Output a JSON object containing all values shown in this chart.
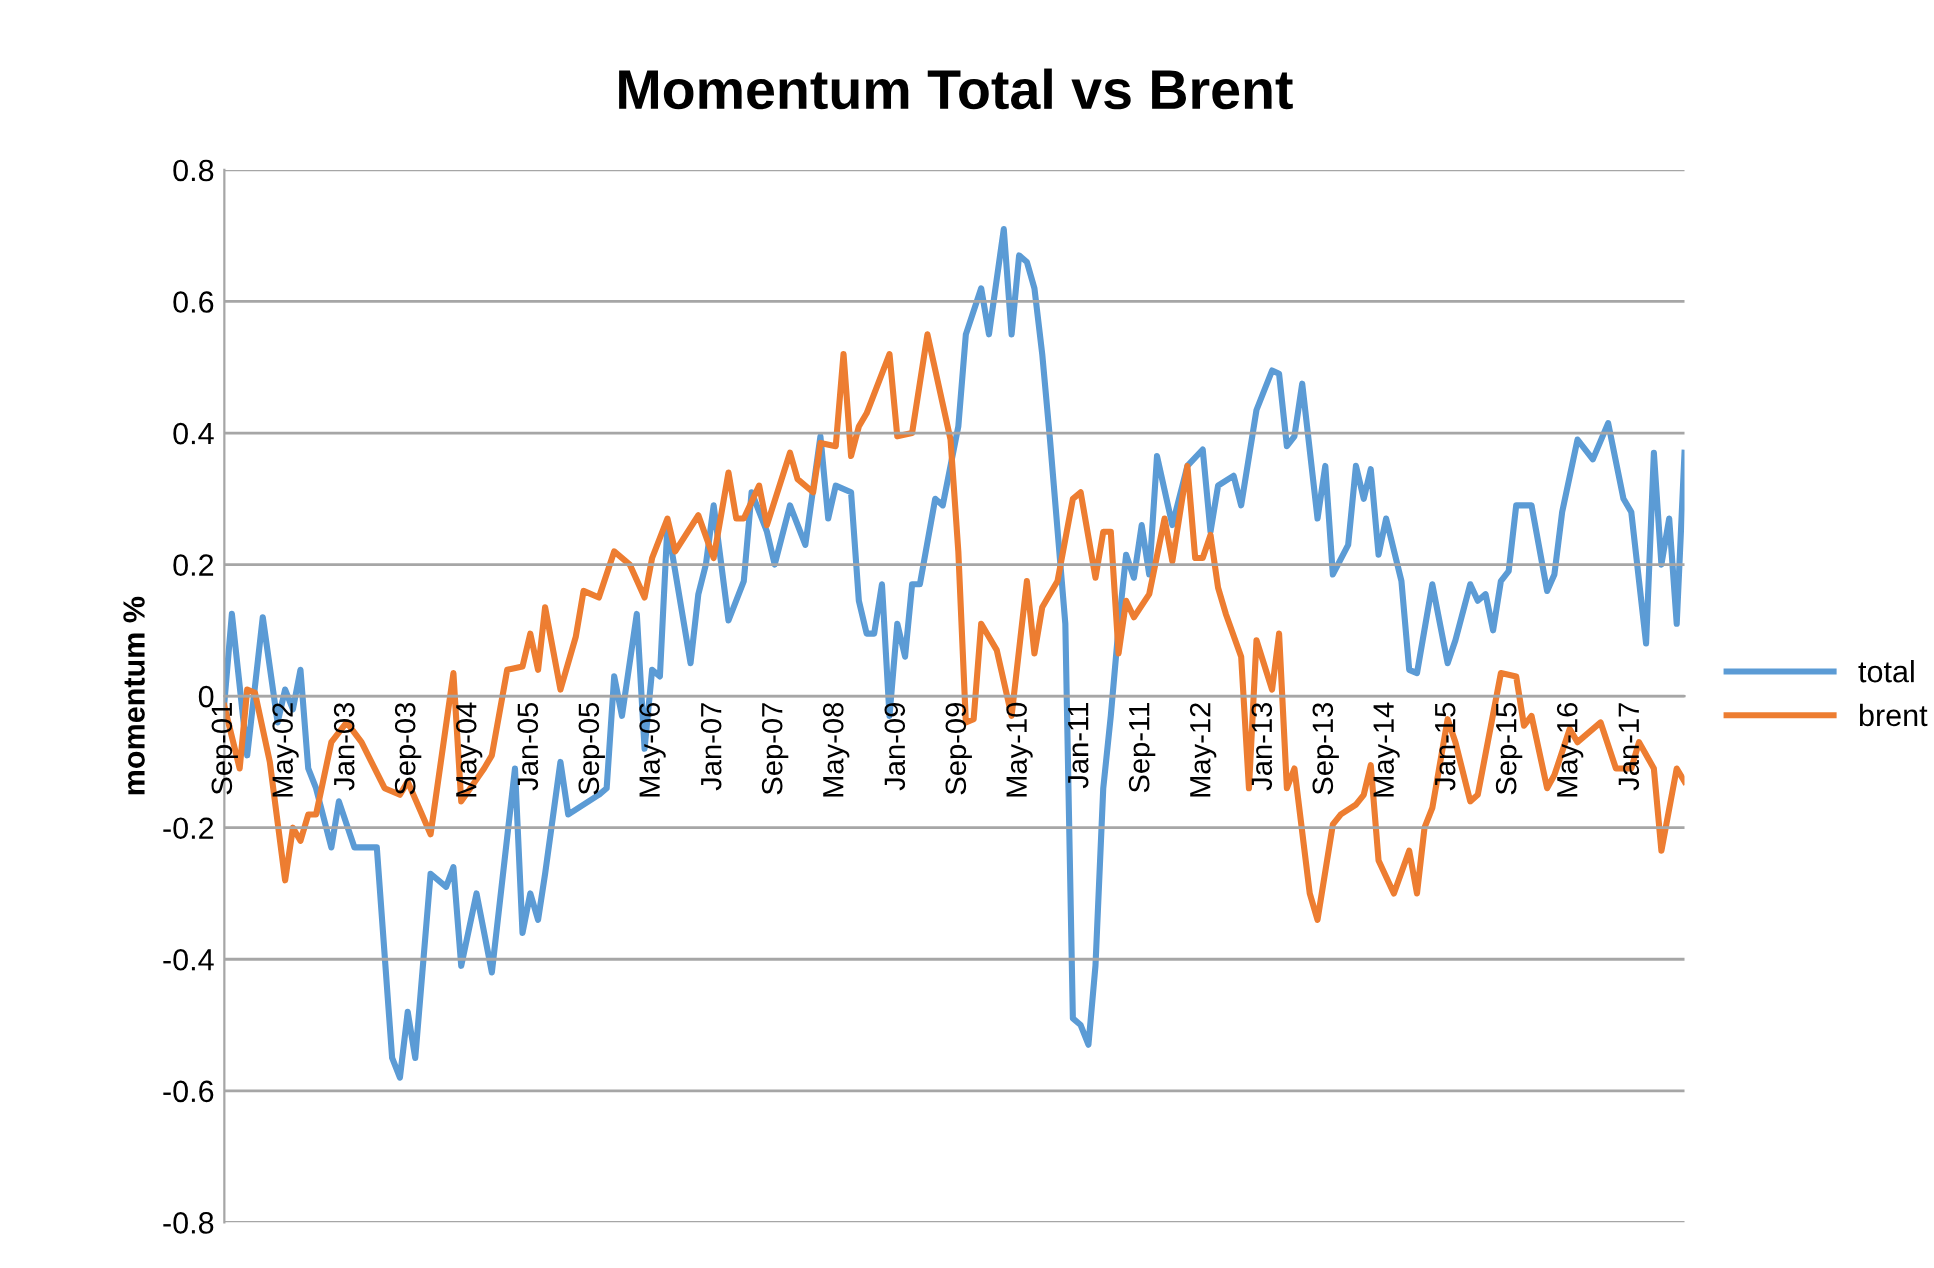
{
  "chart_data": {
    "type": "line",
    "title": "Momentum Total vs Brent",
    "ylabel": "momentum %",
    "series": [
      {
        "name": "total",
        "color": "#5b9bd5",
        "x": [
          "2001-09",
          "2001-10",
          "2001-12",
          "2002-02",
          "2002-04",
          "2002-05",
          "2002-06",
          "2002-07",
          "2002-08",
          "2002-09",
          "2002-11",
          "2002-12",
          "2003-02",
          "2003-05",
          "2003-07",
          "2003-08",
          "2003-09",
          "2003-10",
          "2003-12",
          "2004-02",
          "2004-03",
          "2004-04",
          "2004-06",
          "2004-08",
          "2004-11",
          "2004-12",
          "2005-01",
          "2005-02",
          "2005-03",
          "2005-05",
          "2005-06",
          "2005-10",
          "2005-11",
          "2005-12",
          "2006-01",
          "2006-03",
          "2006-04",
          "2006-05",
          "2006-06",
          "2006-07",
          "2006-10",
          "2006-11",
          "2006-12",
          "2007-01",
          "2007-03",
          "2007-05",
          "2007-06",
          "2007-08",
          "2007-09",
          "2007-11",
          "2008-01",
          "2008-03",
          "2008-04",
          "2008-05",
          "2008-07",
          "2008-08",
          "2008-09",
          "2008-10",
          "2008-11",
          "2008-12",
          "2009-01",
          "2009-02",
          "2009-03",
          "2009-04",
          "2009-06",
          "2009-07",
          "2009-09",
          "2009-10",
          "2009-12",
          "2010-01",
          "2010-03",
          "2010-04",
          "2010-05",
          "2010-06",
          "2010-07",
          "2010-08",
          "2010-09",
          "2010-11",
          "2010-12",
          "2011-01",
          "2011-02",
          "2011-03",
          "2011-04",
          "2011-05",
          "2011-06",
          "2011-07",
          "2011-08",
          "2011-09",
          "2011-10",
          "2011-11",
          "2012-01",
          "2012-03",
          "2012-05",
          "2012-06",
          "2012-07",
          "2012-09",
          "2012-10",
          "2012-12",
          "2013-02",
          "2013-03",
          "2013-04",
          "2013-05",
          "2013-06",
          "2013-08",
          "2013-09",
          "2013-10",
          "2013-12",
          "2014-01",
          "2014-02",
          "2014-03",
          "2014-04",
          "2014-05",
          "2014-07",
          "2014-08",
          "2014-09",
          "2014-11",
          "2015-01",
          "2015-02",
          "2015-04",
          "2015-05",
          "2015-06",
          "2015-07",
          "2015-08",
          "2015-09",
          "2015-10",
          "2015-12",
          "2016-02",
          "2016-03",
          "2016-04",
          "2016-06",
          "2016-08",
          "2016-10",
          "2016-12",
          "2017-01",
          "2017-03",
          "2017-04",
          "2017-05",
          "2017-06",
          "2017-07",
          "2017-08"
        ],
        "values": [
          -0.01,
          0.125,
          -0.09,
          0.12,
          -0.04,
          0.01,
          -0.02,
          0.04,
          -0.11,
          -0.14,
          -0.23,
          -0.16,
          -0.23,
          -0.23,
          -0.55,
          -0.58,
          -0.48,
          -0.55,
          -0.27,
          -0.29,
          -0.26,
          -0.41,
          -0.3,
          -0.42,
          -0.11,
          -0.36,
          -0.3,
          -0.34,
          -0.27,
          -0.1,
          -0.18,
          -0.15,
          -0.14,
          0.03,
          -0.03,
          0.125,
          -0.08,
          0.04,
          0.03,
          0.26,
          0.05,
          0.155,
          0.2,
          0.29,
          0.115,
          0.175,
          0.31,
          0.25,
          0.2,
          0.29,
          0.23,
          0.395,
          0.27,
          0.32,
          0.31,
          0.145,
          0.095,
          0.095,
          0.17,
          -0.03,
          0.11,
          0.06,
          0.17,
          0.17,
          0.3,
          0.29,
          0.41,
          0.55,
          0.62,
          0.55,
          0.71,
          0.55,
          0.67,
          0.66,
          0.62,
          0.52,
          0.39,
          0.11,
          -0.49,
          -0.5,
          -0.53,
          -0.41,
          -0.14,
          -0.03,
          0.105,
          0.215,
          0.18,
          0.26,
          0.185,
          0.365,
          0.26,
          0.35,
          0.375,
          0.25,
          0.32,
          0.335,
          0.29,
          0.435,
          0.495,
          0.49,
          0.38,
          0.395,
          0.475,
          0.27,
          0.35,
          0.185,
          0.23,
          0.35,
          0.3,
          0.345,
          0.215,
          0.27,
          0.175,
          0.04,
          0.035,
          0.17,
          0.05,
          0.085,
          0.17,
          0.145,
          0.155,
          0.1,
          0.175,
          0.19,
          0.29,
          0.29,
          0.16,
          0.185,
          0.28,
          0.39,
          0.36,
          0.415,
          0.3,
          0.28,
          0.08,
          0.37,
          0.2,
          0.27,
          0.11,
          0.37
        ]
      },
      {
        "name": "brent",
        "color": "#ed7d31",
        "x": [
          "2001-09",
          "2001-11",
          "2001-12",
          "2002-01",
          "2002-03",
          "2002-05",
          "2002-06",
          "2002-07",
          "2002-08",
          "2002-09",
          "2002-11",
          "2003-01",
          "2003-03",
          "2003-06",
          "2003-08",
          "2003-09",
          "2003-12",
          "2004-03",
          "2004-04",
          "2004-07",
          "2004-08",
          "2004-10",
          "2004-12",
          "2005-01",
          "2005-02",
          "2005-03",
          "2005-05",
          "2005-07",
          "2005-08",
          "2005-10",
          "2005-12",
          "2006-02",
          "2006-04",
          "2006-05",
          "2006-07",
          "2006-08",
          "2006-11",
          "2007-01",
          "2007-03",
          "2007-04",
          "2007-05",
          "2007-07",
          "2007-08",
          "2007-11",
          "2007-12",
          "2008-02",
          "2008-03",
          "2008-05",
          "2008-06",
          "2008-07",
          "2008-08",
          "2008-09",
          "2008-12",
          "2009-01",
          "2009-03",
          "2009-05",
          "2009-08",
          "2009-09",
          "2009-10",
          "2009-11",
          "2009-12",
          "2010-02",
          "2010-04",
          "2010-06",
          "2010-07",
          "2010-08",
          "2010-10",
          "2010-12",
          "2011-01",
          "2011-03",
          "2011-04",
          "2011-05",
          "2011-06",
          "2011-07",
          "2011-08",
          "2011-10",
          "2011-12",
          "2012-01",
          "2012-03",
          "2012-04",
          "2012-05",
          "2012-06",
          "2012-07",
          "2012-08",
          "2012-10",
          "2012-11",
          "2012-12",
          "2013-02",
          "2013-03",
          "2013-04",
          "2013-05",
          "2013-07",
          "2013-08",
          "2013-10",
          "2013-11",
          "2014-01",
          "2014-02",
          "2014-03",
          "2014-04",
          "2014-06",
          "2014-08",
          "2014-09",
          "2014-10",
          "2014-11",
          "2015-01",
          "2015-02",
          "2015-04",
          "2015-05",
          "2015-08",
          "2015-10",
          "2015-11",
          "2015-12",
          "2016-02",
          "2016-03",
          "2016-05",
          "2016-06",
          "2016-09",
          "2016-11",
          "2017-01",
          "2017-02",
          "2017-04",
          "2017-05",
          "2017-07",
          "2017-08"
        ],
        "values": [
          -0.015,
          -0.11,
          0.01,
          0.005,
          -0.1,
          -0.28,
          -0.2,
          -0.22,
          -0.18,
          -0.18,
          -0.07,
          -0.04,
          -0.07,
          -0.14,
          -0.15,
          -0.13,
          -0.21,
          0.035,
          -0.16,
          -0.11,
          -0.09,
          0.04,
          0.045,
          0.095,
          0.04,
          0.135,
          0.01,
          0.09,
          0.16,
          0.15,
          0.22,
          0.2,
          0.15,
          0.21,
          0.27,
          0.22,
          0.275,
          0.21,
          0.34,
          0.27,
          0.27,
          0.32,
          0.26,
          0.37,
          0.33,
          0.31,
          0.385,
          0.38,
          0.52,
          0.365,
          0.41,
          0.43,
          0.52,
          0.395,
          0.4,
          0.55,
          0.39,
          0.22,
          -0.04,
          -0.035,
          0.11,
          0.07,
          -0.03,
          0.175,
          0.065,
          0.135,
          0.175,
          0.3,
          0.31,
          0.18,
          0.25,
          0.25,
          0.065,
          0.145,
          0.12,
          0.155,
          0.27,
          0.205,
          0.35,
          0.21,
          0.21,
          0.245,
          0.165,
          0.125,
          0.06,
          -0.14,
          0.085,
          0.01,
          0.095,
          -0.14,
          -0.11,
          -0.3,
          -0.34,
          -0.195,
          -0.18,
          -0.165,
          -0.15,
          -0.105,
          -0.25,
          -0.3,
          -0.235,
          -0.3,
          -0.2,
          -0.17,
          -0.035,
          -0.07,
          -0.16,
          -0.15,
          0.035,
          0.03,
          -0.045,
          -0.03,
          -0.14,
          -0.12,
          -0.05,
          -0.07,
          -0.04,
          -0.11,
          -0.11,
          -0.07,
          -0.11,
          -0.235,
          -0.11,
          -0.13
        ]
      }
    ],
    "xlim": [
      "2001-09",
      "2017-08"
    ],
    "xticks": [
      {
        "value": "2001-09",
        "label": "Sep-01"
      },
      {
        "value": "2002-05",
        "label": "May-02"
      },
      {
        "value": "2003-01",
        "label": "Jan-03"
      },
      {
        "value": "2003-09",
        "label": "Sep-03"
      },
      {
        "value": "2004-05",
        "label": "May-04"
      },
      {
        "value": "2005-01",
        "label": "Jan-05"
      },
      {
        "value": "2005-09",
        "label": "Sep-05"
      },
      {
        "value": "2006-05",
        "label": "May-06"
      },
      {
        "value": "2007-01",
        "label": "Jan-07"
      },
      {
        "value": "2007-09",
        "label": "Sep-07"
      },
      {
        "value": "2008-05",
        "label": "May-08"
      },
      {
        "value": "2009-01",
        "label": "Jan-09"
      },
      {
        "value": "2009-09",
        "label": "Sep-09"
      },
      {
        "value": "2010-05",
        "label": "May-10"
      },
      {
        "value": "2011-01",
        "label": "Jan-11"
      },
      {
        "value": "2011-09",
        "label": "Sep-11"
      },
      {
        "value": "2012-05",
        "label": "May-12"
      },
      {
        "value": "2013-01",
        "label": "Jan-13"
      },
      {
        "value": "2013-09",
        "label": "Sep-13"
      },
      {
        "value": "2014-05",
        "label": "May-14"
      },
      {
        "value": "2015-01",
        "label": "Jan-15"
      },
      {
        "value": "2015-09",
        "label": "Sep-15"
      },
      {
        "value": "2016-05",
        "label": "May-16"
      },
      {
        "value": "2017-01",
        "label": "Jan-17"
      }
    ],
    "ylim": [
      -0.8,
      0.8
    ],
    "yticks": [
      -0.8,
      -0.6,
      -0.4,
      -0.2,
      0,
      0.2,
      0.4,
      0.6,
      0.8
    ],
    "grid": "y",
    "legend": "right",
    "marker": "none",
    "line_style": "solid"
  }
}
